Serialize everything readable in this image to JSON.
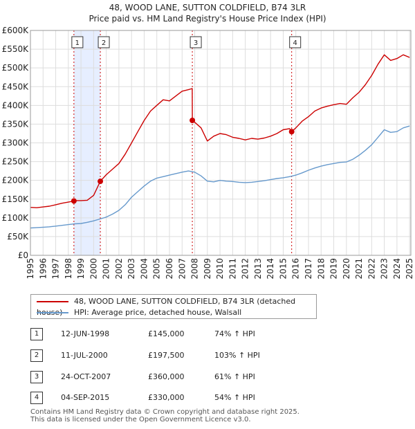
{
  "header": {
    "title_line1": "48, WOOD LANE, SUTTON COLDFIELD, B74 3LR",
    "title_line2": "Price paid vs. HM Land Registry's House Price Index (HPI)"
  },
  "colors": {
    "property": "#cc0000",
    "hpi": "#6699cc",
    "shade": "#e6eeff",
    "marker_line": "#cc0000"
  },
  "chart_data": {
    "type": "line",
    "title": "48, WOOD LANE, SUTTON COLDFIELD, B74 3LR",
    "subtitle": "Price paid vs. HM Land Registry's House Price Index (HPI)",
    "xlabel": "",
    "ylabel": "",
    "xlim": [
      1995,
      2025.1
    ],
    "ylim": [
      0,
      600000
    ],
    "y_ticks": [
      0,
      50000,
      100000,
      150000,
      200000,
      250000,
      300000,
      350000,
      400000,
      450000,
      500000,
      550000,
      600000
    ],
    "y_tick_labels": [
      "£0",
      "£50K",
      "£100K",
      "£150K",
      "£200K",
      "£250K",
      "£300K",
      "£350K",
      "£400K",
      "£450K",
      "£500K",
      "£550K",
      "£600K"
    ],
    "x_ticks": [
      1995,
      1996,
      1997,
      1998,
      1999,
      2000,
      2001,
      2002,
      2003,
      2004,
      2005,
      2006,
      2007,
      2008,
      2009,
      2010,
      2011,
      2012,
      2013,
      2014,
      2015,
      2016,
      2017,
      2018,
      2019,
      2020,
      2021,
      2022,
      2023,
      2024,
      2025
    ],
    "x_tick_labels": [
      "1995",
      "1996",
      "1997",
      "1998",
      "1999",
      "2000",
      "2001",
      "2002",
      "2003",
      "2004",
      "2005",
      "2006",
      "2007",
      "2008",
      "2009",
      "2010",
      "2011",
      "2012",
      "2013",
      "2014",
      "2015",
      "2016",
      "2017",
      "2018",
      "2019",
      "2020",
      "2021",
      "2022",
      "2023",
      "2024",
      "2025"
    ],
    "grid": true,
    "shaded_periods": [
      [
        1998.44,
        2000.53
      ]
    ],
    "series": [
      {
        "name": "48, WOOD LANE, SUTTON COLDFIELD, B74 3LR (detached house)",
        "color": "#cc0000",
        "x": [
          1995,
          1995.5,
          1996,
          1996.5,
          1997,
          1997.5,
          1998,
          1998.44,
          1998.5,
          1999,
          1999.5,
          2000,
          2000.53,
          2001,
          2001.5,
          2002,
          2002.5,
          2003,
          2003.5,
          2004,
          2004.5,
          2005,
          2005.5,
          2006,
          2006.5,
          2007,
          2007.5,
          2007.8,
          2007.81,
          2008,
          2008.5,
          2009,
          2009.5,
          2010,
          2010.5,
          2011,
          2011.5,
          2012,
          2012.5,
          2013,
          2013.5,
          2014,
          2014.5,
          2015,
          2015.5,
          2015.67,
          2016,
          2016.5,
          2017,
          2017.5,
          2018,
          2018.5,
          2019,
          2019.5,
          2020,
          2020.5,
          2021,
          2021.5,
          2022,
          2022.5,
          2023,
          2023.5,
          2024,
          2024.5,
          2025
        ],
        "values": [
          128000,
          127000,
          129000,
          131000,
          135000,
          139000,
          142000,
          145000,
          146000,
          146000,
          147000,
          160000,
          197500,
          215000,
          230000,
          245000,
          270000,
          300000,
          330000,
          360000,
          385000,
          400000,
          415000,
          412000,
          425000,
          438000,
          442000,
          445000,
          360000,
          355000,
          340000,
          305000,
          318000,
          325000,
          322000,
          315000,
          312000,
          308000,
          312000,
          310000,
          313000,
          318000,
          325000,
          335000,
          338000,
          330000,
          340000,
          358000,
          370000,
          385000,
          393000,
          398000,
          402000,
          405000,
          403000,
          420000,
          435000,
          455000,
          480000,
          510000,
          535000,
          520000,
          525000,
          535000,
          528000
        ]
      },
      {
        "name": "HPI: Average price, detached house, Walsall",
        "color": "#6699cc",
        "x": [
          1995,
          1995.5,
          1996,
          1996.5,
          1997,
          1997.5,
          1998,
          1998.5,
          1999,
          1999.5,
          2000,
          2000.5,
          2001,
          2001.5,
          2002,
          2002.5,
          2003,
          2003.5,
          2004,
          2004.5,
          2005,
          2005.5,
          2006,
          2006.5,
          2007,
          2007.5,
          2008,
          2008.5,
          2009,
          2009.5,
          2010,
          2010.5,
          2011,
          2011.5,
          2012,
          2012.5,
          2013,
          2013.5,
          2014,
          2014.5,
          2015,
          2015.5,
          2016,
          2016.5,
          2017,
          2017.5,
          2018,
          2018.5,
          2019,
          2019.5,
          2020,
          2020.5,
          2021,
          2021.5,
          2022,
          2022.5,
          2023,
          2023.5,
          2024,
          2024.5,
          2025
        ],
        "values": [
          73000,
          74000,
          75000,
          76000,
          78000,
          80000,
          82000,
          84000,
          85000,
          88000,
          92000,
          97000,
          102000,
          110000,
          120000,
          135000,
          155000,
          170000,
          185000,
          198000,
          206000,
          210000,
          214000,
          218000,
          222000,
          225000,
          222000,
          212000,
          198000,
          196000,
          200000,
          198000,
          197000,
          195000,
          194000,
          195000,
          197000,
          199000,
          202000,
          205000,
          207000,
          210000,
          214000,
          220000,
          227000,
          233000,
          238000,
          242000,
          245000,
          248000,
          249000,
          256000,
          267000,
          280000,
          295000,
          315000,
          335000,
          328000,
          330000,
          340000,
          345000
        ]
      }
    ],
    "sale_markers": [
      {
        "label": "1",
        "x": 1998.44,
        "value": 145000
      },
      {
        "label": "2",
        "x": 2000.53,
        "value": 197500
      },
      {
        "label": "3",
        "x": 2007.81,
        "value": 360000
      },
      {
        "label": "4",
        "x": 2015.67,
        "value": 330000
      }
    ]
  },
  "legend": {
    "items": [
      {
        "label": "48, WOOD LANE, SUTTON COLDFIELD, B74 3LR (detached house)",
        "color": "#cc0000"
      },
      {
        "label": "HPI: Average price, detached house, Walsall",
        "color": "#6699cc"
      }
    ]
  },
  "table": {
    "rows": [
      {
        "num": "1",
        "date": "12-JUN-1998",
        "price": "£145,000",
        "hpi": "74% ↑ HPI"
      },
      {
        "num": "2",
        "date": "11-JUL-2000",
        "price": "£197,500",
        "hpi": "103% ↑ HPI"
      },
      {
        "num": "3",
        "date": "24-OCT-2007",
        "price": "£360,000",
        "hpi": "61% ↑ HPI"
      },
      {
        "num": "4",
        "date": "04-SEP-2015",
        "price": "£330,000",
        "hpi": "54% ↑ HPI"
      }
    ]
  },
  "footer": {
    "line1": "Contains HM Land Registry data © Crown copyright and database right 2025.",
    "line2": "This data is licensed under the Open Government Licence v3.0."
  }
}
